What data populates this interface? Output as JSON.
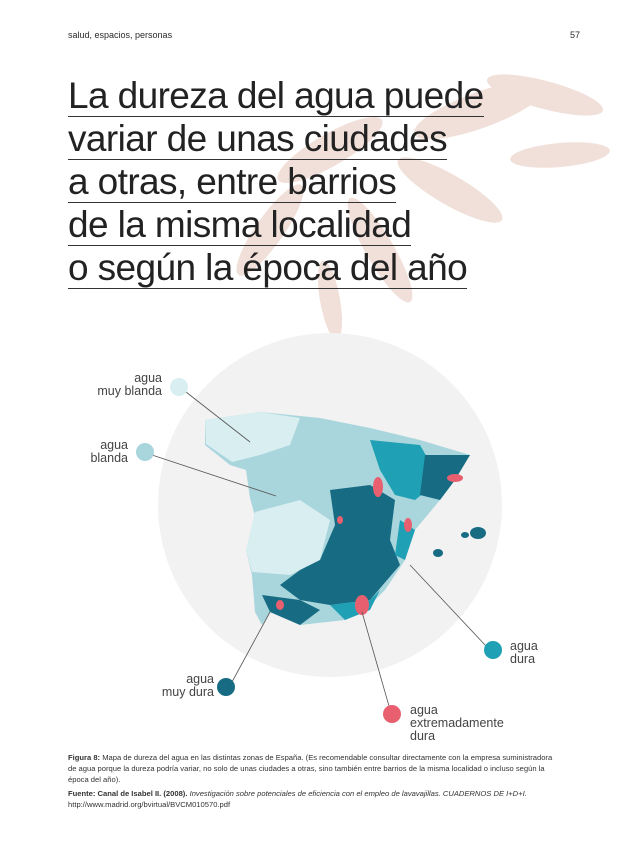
{
  "header": {
    "section": "salud, espacios, personas",
    "page_number": "57"
  },
  "title_lines": [
    "La dureza del agua puede",
    "variar de unas ciudades",
    "a otras, entre barrios",
    "de la misma localidad",
    "o según la época del año"
  ],
  "legend": [
    {
      "lines": [
        "agua",
        "muy blanda"
      ]
    },
    {
      "lines": [
        "agua",
        "blanda"
      ]
    },
    {
      "lines": [
        "agua",
        "dura"
      ]
    },
    {
      "lines": [
        "agua",
        "muy dura"
      ]
    },
    {
      "lines": [
        "agua",
        "extremadamente",
        "dura"
      ]
    }
  ],
  "caption": {
    "label": "Figura 8:",
    "text": "Mapa de dureza del agua en las distintas zonas de España. (Es recomendable consultar directamente con la empresa suministradora de agua porque la dureza podría variar, no solo de unas ciudades a otras, sino también entre barrios de la misma localidad o incluso según la época del año)."
  },
  "source": {
    "label": "Fuente:",
    "author": "Canal de Isabel II. (2008).",
    "work": "Investigación sobre potenciales de eficiencia con el empleo de lavavajillas. CUADERNOS DE I+D+I.",
    "url": "http://www.madrid.org/bvirtual/BVCM010570.pdf"
  }
}
